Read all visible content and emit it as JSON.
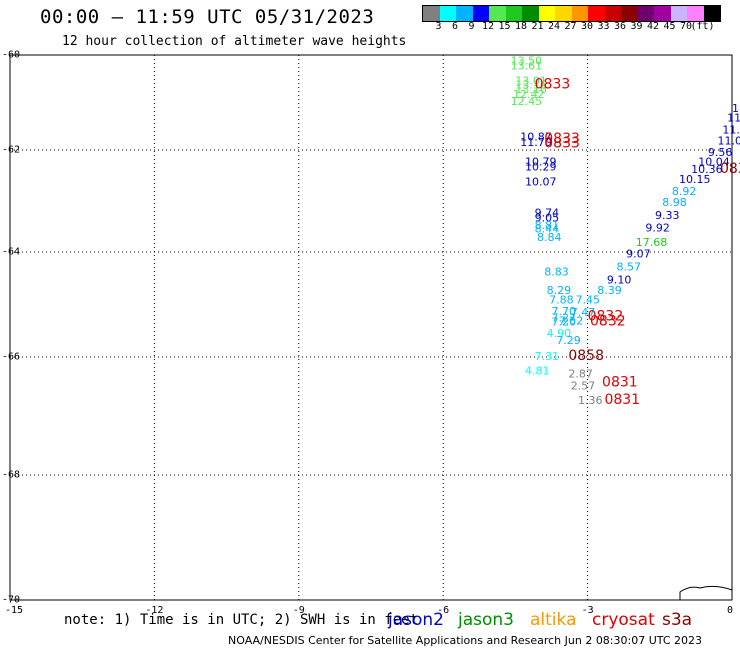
{
  "title": "00:00 – 11:59 UTC 05/31/2023",
  "subtitle": "12 hour collection of altimeter wave heights",
  "colorbar": {
    "colors": [
      "#808080",
      "#00ffff",
      "#00b3ff",
      "#0000ff",
      "#55e855",
      "#1ec81e",
      "#008c00",
      "#ffff00",
      "#ffd700",
      "#ff9600",
      "#ff0000",
      "#c80000",
      "#8c0000",
      "#6e006e",
      "#a000a0",
      "#c8b4ff",
      "#ff80ff",
      "#000000"
    ],
    "labels": [
      "3",
      "6",
      "9",
      "12",
      "15",
      "18",
      "21",
      "24",
      "27",
      "30",
      "33",
      "36",
      "39",
      "42",
      "45",
      "70",
      "(ft)"
    ]
  },
  "lat_labels": [
    "-60",
    "-62",
    "-64",
    "-66",
    "-68",
    "-70"
  ],
  "lon_labels": [
    "-15",
    "-12",
    "-9",
    "-6",
    "-3",
    "0"
  ],
  "note": "note: 1) Time is in UTC; 2) SWH is in feet",
  "credit": "NOAA/NESDIS Center for Satellite Applications and Research   Jun  2 08:30:07 UTC 2023",
  "legend": [
    {
      "label": "jason2",
      "color": "#0000cc"
    },
    {
      "label": "jason3",
      "color": "#008c00"
    },
    {
      "label": "altika",
      "color": "#ff9600"
    },
    {
      "label": "cryosat",
      "color": "#e00000"
    },
    {
      "label": "s3a",
      "color": "#8c0000"
    }
  ],
  "observations": [
    {
      "text": "13.50",
      "color": "#55e855",
      "lon": -4.6,
      "lat": -60.2
    },
    {
      "text": "13.61",
      "color": "#55e855",
      "lon": -4.6,
      "lat": -60.3
    },
    {
      "text": "13.01",
      "color": "#55e855",
      "lon": -4.5,
      "lat": -60.62
    },
    {
      "text": "13.16",
      "color": "#55e855",
      "lon": -4.5,
      "lat": -60.7
    },
    {
      "text": "13.16",
      "color": "#55e855",
      "lon": -4.5,
      "lat": -60.8
    },
    {
      "text": "12.42",
      "color": "#55e855",
      "lon": -4.55,
      "lat": -60.9
    },
    {
      "text": "12.45",
      "color": "#55e855",
      "lon": -4.6,
      "lat": -61.05
    },
    {
      "text": "0833",
      "color": "#e00000",
      "lon": -4.1,
      "lat": -60.7,
      "big": true
    },
    {
      "text": "10.87",
      "color": "#0000cc",
      "lon": -4.4,
      "lat": -61.8
    },
    {
      "text": "11.70",
      "color": "#0000cc",
      "lon": -4.4,
      "lat": -61.92
    },
    {
      "text": "0833",
      "color": "#e00000",
      "lon": -3.9,
      "lat": -61.85,
      "big": true
    },
    {
      "text": "0833",
      "color": "#e00000",
      "lon": -3.9,
      "lat": -61.95,
      "big": true
    },
    {
      "text": "10.79",
      "color": "#0000cc",
      "lon": -4.3,
      "lat": -62.3
    },
    {
      "text": "10.29",
      "color": "#0000cc",
      "lon": -4.3,
      "lat": -62.4
    },
    {
      "text": "10.07",
      "color": "#0000cc",
      "lon": -4.3,
      "lat": -62.7
    },
    {
      "text": "9.74",
      "color": "#0000cc",
      "lon": -4.1,
      "lat": -63.3
    },
    {
      "text": "9.05",
      "color": "#0000cc",
      "lon": -4.1,
      "lat": -63.4
    },
    {
      "text": "8.81",
      "color": "#00b3ff",
      "lon": -4.1,
      "lat": -63.55
    },
    {
      "text": "8.44",
      "color": "#00b3ff",
      "lon": -4.1,
      "lat": -63.62
    },
    {
      "text": "8.84",
      "color": "#00b3ff",
      "lon": -4.05,
      "lat": -63.78
    },
    {
      "text": "8.83",
      "color": "#00b3ff",
      "lon": -3.9,
      "lat": -64.45
    },
    {
      "text": "8.29",
      "color": "#00b3ff",
      "lon": -3.85,
      "lat": -64.8
    },
    {
      "text": "7.88",
      "color": "#00b3ff",
      "lon": -3.8,
      "lat": -64.98
    },
    {
      "text": "7.70",
      "color": "#00b3ff",
      "lon": -3.75,
      "lat": -65.2
    },
    {
      "text": "7.27",
      "color": "#00b3ff",
      "lon": -3.75,
      "lat": -65.32
    },
    {
      "text": "7.47",
      "color": "#00b3ff",
      "lon": -3.35,
      "lat": -65.22
    },
    {
      "text": "7.45",
      "color": "#00b3ff",
      "lon": -3.25,
      "lat": -64.98
    },
    {
      "text": "7.52",
      "color": "#00b3ff",
      "lon": -3.6,
      "lat": -65.38
    },
    {
      "text": "7.20",
      "color": "#00b3ff",
      "lon": -3.75,
      "lat": -65.4
    },
    {
      "text": "4.90",
      "color": "#00ffff",
      "lon": -3.85,
      "lat": -65.62
    },
    {
      "text": "7.29",
      "color": "#00b3ff",
      "lon": -3.65,
      "lat": -65.75
    },
    {
      "text": "0832",
      "color": "#e00000",
      "lon": -3.0,
      "lat": -65.3,
      "big": true
    },
    {
      "text": "0832",
      "color": "#e00000",
      "lon": -2.95,
      "lat": -65.4,
      "big": true
    },
    {
      "text": "7.31",
      "color": "#00ffff",
      "lon": -4.1,
      "lat": -66.05
    },
    {
      "text": "0858",
      "color": "#8c0000",
      "lon": -3.4,
      "lat": -66.05,
      "big": true
    },
    {
      "text": "4.81",
      "color": "#00ffff",
      "lon": -4.3,
      "lat": -66.3
    },
    {
      "text": "2.87",
      "color": "#808080",
      "lon": -3.4,
      "lat": -66.35
    },
    {
      "text": "2.57",
      "color": "#808080",
      "lon": -3.35,
      "lat": -66.55
    },
    {
      "text": "0831",
      "color": "#e00000",
      "lon": -2.7,
      "lat": -66.5,
      "big": true
    },
    {
      "text": "1.36",
      "color": "#808080",
      "lon": -3.2,
      "lat": -66.8
    },
    {
      "text": "0831",
      "color": "#e00000",
      "lon": -2.65,
      "lat": -66.8,
      "big": true
    },
    {
      "text": "8.39",
      "color": "#00b3ff",
      "lon": -2.8,
      "lat": -64.8
    },
    {
      "text": "9.10",
      "color": "#0000cc",
      "lon": -2.6,
      "lat": -64.6
    },
    {
      "text": "8.57",
      "color": "#00b3ff",
      "lon": -2.4,
      "lat": -64.35
    },
    {
      "text": "9.07",
      "color": "#0000cc",
      "lon": -2.2,
      "lat": -64.1
    },
    {
      "text": "17.68",
      "color": "#1ec81e",
      "lon": -2.0,
      "lat": -63.88
    },
    {
      "text": "9.92",
      "color": "#0000cc",
      "lon": -1.8,
      "lat": -63.6
    },
    {
      "text": "9.33",
      "color": "#0000cc",
      "lon": -1.6,
      "lat": -63.35
    },
    {
      "text": "8.98",
      "color": "#00b3ff",
      "lon": -1.45,
      "lat": -63.1
    },
    {
      "text": "8.92",
      "color": "#00b3ff",
      "lon": -1.25,
      "lat": -62.88
    },
    {
      "text": "10.15",
      "color": "#0000cc",
      "lon": -1.1,
      "lat": -62.65
    },
    {
      "text": "10.36",
      "color": "#0000cc",
      "lon": -0.85,
      "lat": -62.45
    },
    {
      "text": "10.04",
      "color": "#0000cc",
      "lon": -0.7,
      "lat": -62.3
    },
    {
      "text": "9.56",
      "color": "#0000cc",
      "lon": -0.5,
      "lat": -62.12
    },
    {
      "text": "11.04",
      "color": "#0000cc",
      "lon": -0.3,
      "lat": -61.88
    },
    {
      "text": "11.60",
      "color": "#0000cc",
      "lon": -0.2,
      "lat": -61.65
    },
    {
      "text": "11.",
      "color": "#0000cc",
      "lon": -0.1,
      "lat": -61.4
    },
    {
      "text": "11",
      "color": "#0000cc",
      "lon": 0.0,
      "lat": -61.2
    },
    {
      "text": "083",
      "color": "#8c0000",
      "lon": -0.25,
      "lat": -62.45,
      "big": true
    }
  ]
}
